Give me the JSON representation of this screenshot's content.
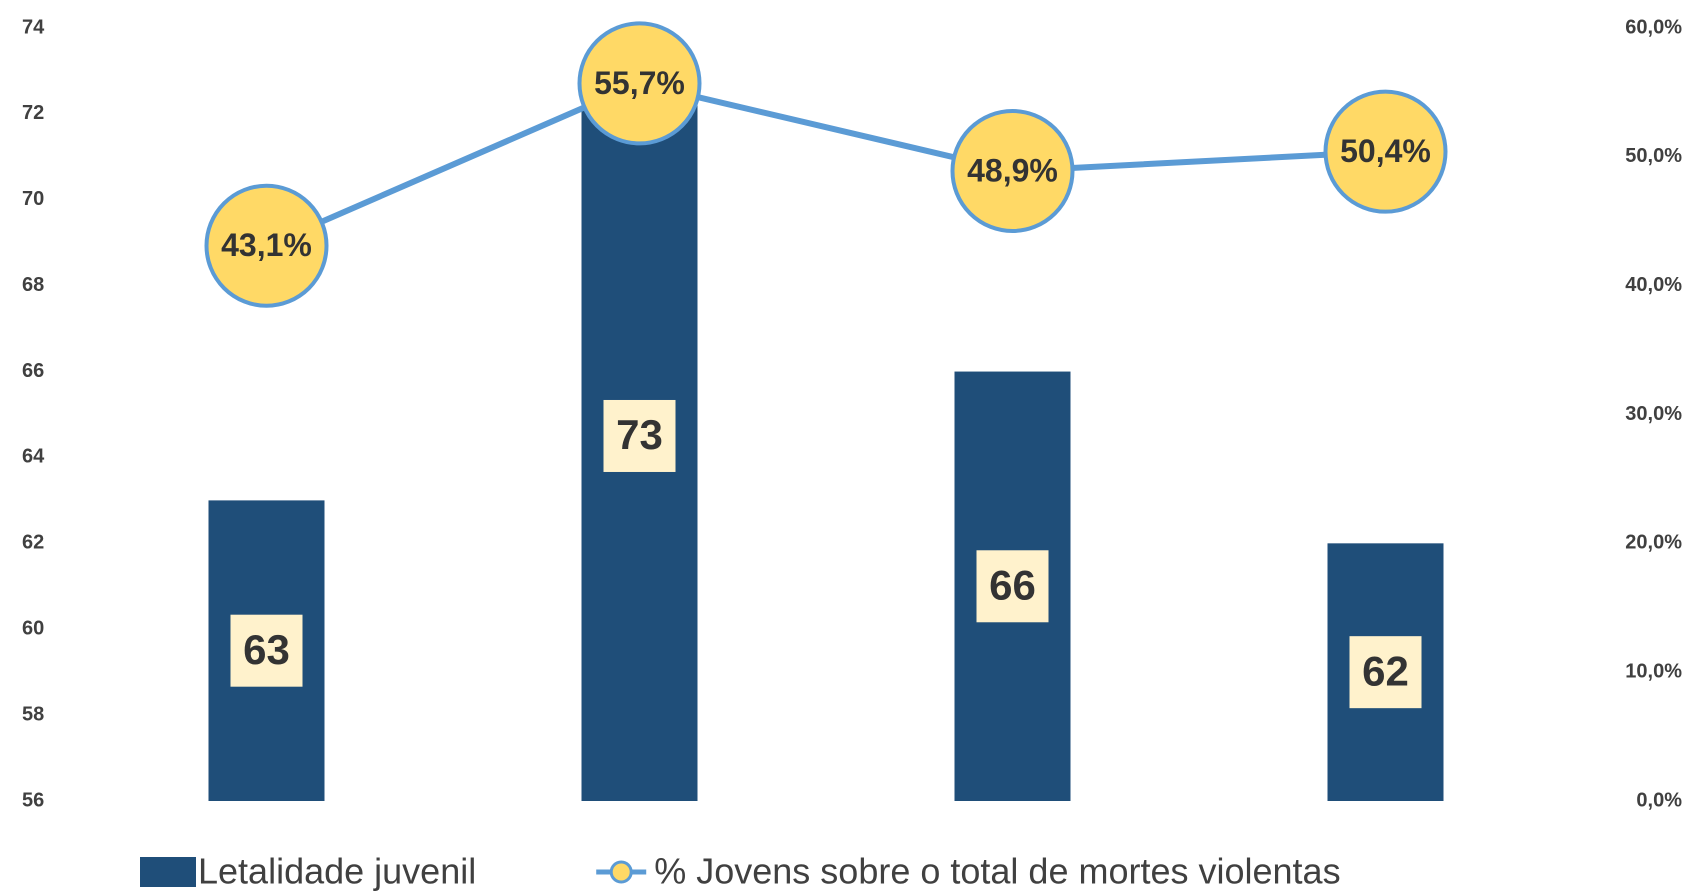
{
  "chart_data": {
    "type": "bar",
    "categories": [
      null,
      null,
      null,
      null
    ],
    "ylim": [
      56,
      74
    ],
    "yticks": [
      56,
      58,
      60,
      62,
      64,
      66,
      68,
      70,
      72,
      74
    ],
    "y2lim": [
      0,
      60
    ],
    "y2ticks": [
      {
        "value": 0,
        "label": "0,0%"
      },
      {
        "value": 10,
        "label": "10,0%"
      },
      {
        "value": 20,
        "label": "20,0%"
      },
      {
        "value": 30,
        "label": "30,0%"
      },
      {
        "value": 40,
        "label": "40,0%"
      },
      {
        "value": 50,
        "label": "50,0%"
      },
      {
        "value": 60,
        "label": "60,0%"
      }
    ],
    "series": [
      {
        "name": "Letalidade juvenil",
        "type": "bar",
        "color": "#1f4e79",
        "values": [
          63,
          73,
          66,
          62
        ]
      },
      {
        "name": "% Jovens sobre o total de mortes violentas",
        "type": "line",
        "axis": "y2",
        "color": "#5b9bd5",
        "marker_color": "#ffd966",
        "values": [
          43.1,
          55.7,
          48.9,
          50.4
        ],
        "value_labels": [
          "43,1%",
          "55,7%",
          "48,9%",
          "50,4%"
        ]
      }
    ],
    "legend": "bottom"
  }
}
